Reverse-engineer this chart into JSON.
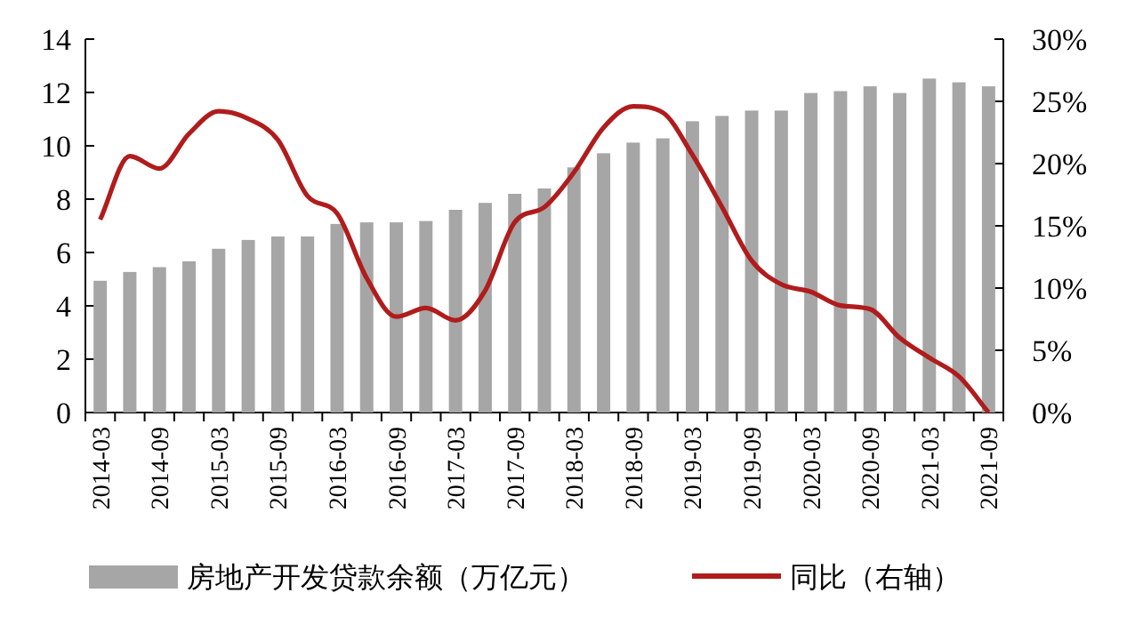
{
  "chart_data": {
    "type": "bar",
    "categories": [
      "2014-03",
      null,
      "2014-09",
      null,
      "2015-03",
      null,
      "2015-09",
      null,
      "2016-03",
      null,
      "2016-09",
      null,
      "2017-03",
      null,
      "2017-09",
      null,
      "2018-03",
      null,
      "2018-09",
      null,
      "2019-03",
      null,
      "2019-09",
      null,
      "2020-03",
      null,
      "2020-09",
      null,
      "2021-03",
      null,
      "2021-09"
    ],
    "series": [
      {
        "name": "房地产开发贷款余额（万亿元）",
        "color": "#a6a6a6",
        "values": [
          4.94,
          5.27,
          5.45,
          5.67,
          6.14,
          6.47,
          6.6,
          6.6,
          7.07,
          7.13,
          7.13,
          7.18,
          7.6,
          7.86,
          8.2,
          8.4,
          9.19,
          9.72,
          10.12,
          10.28,
          10.92,
          11.12,
          11.32,
          11.32,
          11.98,
          12.05,
          12.23,
          11.98,
          12.52,
          12.38,
          12.23
        ]
      },
      {
        "name": "同比（右轴）",
        "type": "line",
        "axis": "y2",
        "color": "#b01c1c",
        "values": [
          15.5,
          20.6,
          19.6,
          22.4,
          24.2,
          23.6,
          21.9,
          17.4,
          16.0,
          10.8,
          7.7,
          8.4,
          7.4,
          9.8,
          15.3,
          16.5,
          19.3,
          22.9,
          24.6,
          24.1,
          20.7,
          16.5,
          12.2,
          10.3,
          9.7,
          8.6,
          8.3,
          6.0,
          4.4,
          2.9,
          0
        ]
      }
    ],
    "ylim": [
      0,
      14
    ],
    "yticks": [
      0,
      2,
      4,
      6,
      8,
      10,
      12,
      14
    ],
    "y2lim": [
      0,
      30
    ],
    "y2ticks": [
      {
        "value": 0,
        "label": "0%"
      },
      {
        "value": 5,
        "label": "5%"
      },
      {
        "value": 10,
        "label": "10%"
      },
      {
        "value": 15,
        "label": "15%"
      },
      {
        "value": 20,
        "label": "20%"
      },
      {
        "value": 25,
        "label": "25%"
      },
      {
        "value": 30,
        "label": "30%"
      }
    ],
    "legend": "bottom",
    "grid": false,
    "marker": "none",
    "line_style": "solid"
  }
}
